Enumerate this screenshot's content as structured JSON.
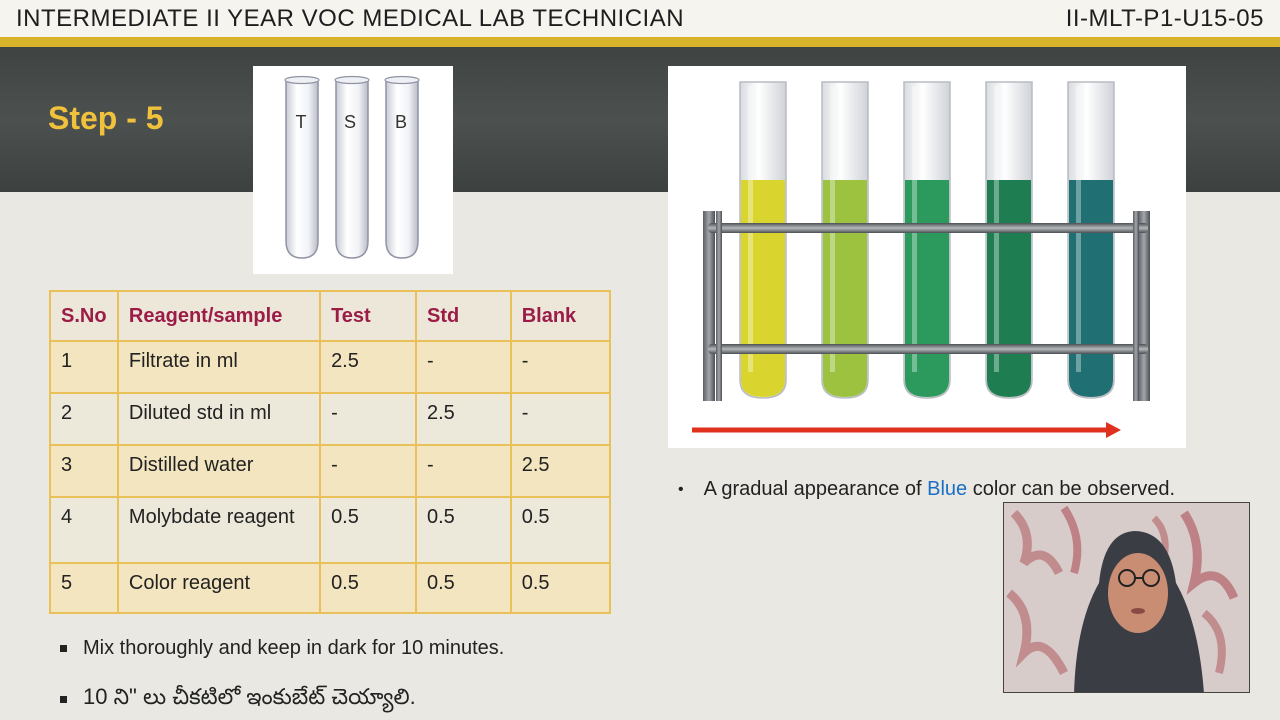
{
  "header": {
    "title": "INTERMEDIATE II YEAR VOC MEDICAL LAB TECHNICIAN",
    "code": "II-MLT-P1-U15-05"
  },
  "slide": {
    "step_title": "Step - 5"
  },
  "tubes": {
    "labels": [
      "T",
      "S",
      "B"
    ]
  },
  "table": {
    "headers": [
      "S.No",
      "Reagent/sample",
      "Test",
      "Std",
      "Blank"
    ],
    "rows": [
      [
        "1",
        "Filtrate in ml",
        "2.5",
        "-",
        "-"
      ],
      [
        "2",
        "Diluted std in ml",
        "-",
        "2.5",
        "-"
      ],
      [
        "3",
        "Distilled water",
        "-",
        "-",
        "2.5"
      ],
      [
        "4",
        "Molybdate reagent",
        "0.5",
        "0.5",
        "0.5"
      ],
      [
        "5",
        "Color reagent",
        "0.5",
        "0.5",
        "0.5"
      ]
    ]
  },
  "notes": {
    "mix": "Mix thoroughly and keep in dark for 10 minutes.",
    "telugu": "10 ని\" లు చీకటిలో ఇంకుబేట్ చెయ్యాలి.",
    "observation_before": "A gradual appearance of ",
    "observation_blue": "Blue",
    "observation_after": " color can be observed."
  },
  "colors": {
    "accent_gold": "#d6b32a",
    "step_title": "#f0c23c",
    "table_header_text": "#9b1c48",
    "table_border": "#e9c158",
    "blue_word": "#1a6fc4",
    "arrow": "#e0301e",
    "rack_tube_liquids": [
      "#d9d42e",
      "#9cc23f",
      "#2c9a5c",
      "#1e7e52",
      "#1f6f73"
    ]
  },
  "icons": {
    "bullet_mix": "square-bullet",
    "bullet_telugu": "square-bullet",
    "bullet_observation": "dot-bullet"
  }
}
